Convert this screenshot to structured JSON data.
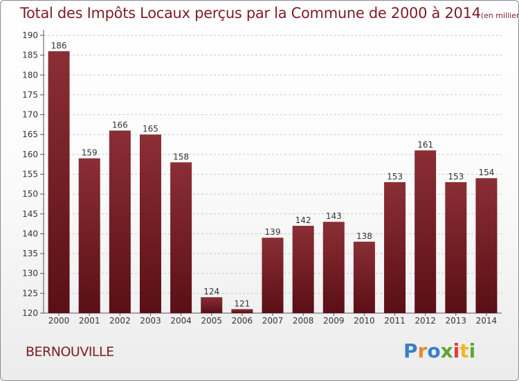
{
  "header": {
    "title": "Total des Impôts Locaux perçus par la Commune de 2000 à 2014",
    "unit": "(en milliers d'€)"
  },
  "commune": "BERNOUVILLE",
  "logo": {
    "text": "Proxiti",
    "letter_colors": [
      "#3a7fc9",
      "#e8892b",
      "#3a7fc9",
      "#5aa832",
      "#e13b3b",
      "#f0b726",
      "#5aa832"
    ]
  },
  "colors": {
    "bar_top": "#8b2e35",
    "bar_bottom": "#5a0f16",
    "title": "#7d1c24",
    "grid": "#c9c9c9"
  },
  "chart_data": {
    "type": "bar",
    "title": "Total des Impôts Locaux perçus par la Commune de 2000 à 2014",
    "categories": [
      "2000",
      "2001",
      "2002",
      "2003",
      "2004",
      "2005",
      "2006",
      "2007",
      "2008",
      "2009",
      "2010",
      "2011",
      "2012",
      "2013",
      "2014"
    ],
    "values": [
      186,
      159,
      166,
      165,
      158,
      124,
      121,
      139,
      142,
      143,
      138,
      153,
      161,
      153,
      154
    ],
    "ylim": [
      120,
      190
    ],
    "yticks": [
      120,
      125,
      130,
      135,
      140,
      145,
      150,
      155,
      160,
      165,
      170,
      175,
      180,
      185,
      190
    ],
    "grid": true,
    "data_labels": true
  }
}
